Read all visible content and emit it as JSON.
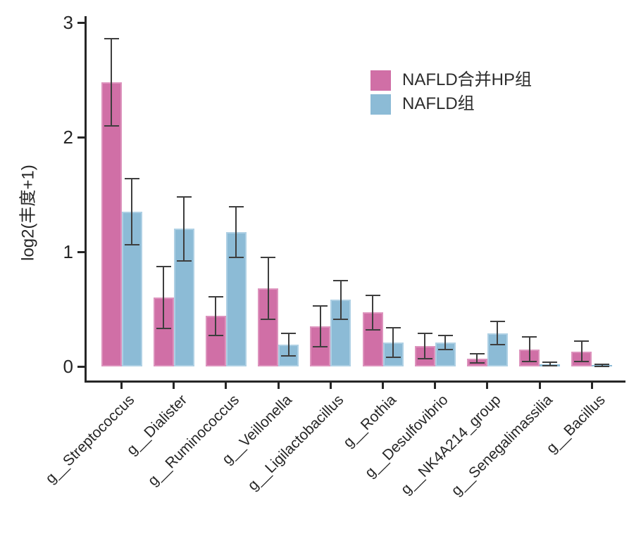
{
  "chart_data": {
    "type": "bar",
    "title": "",
    "ylabel": "log2(丰度+1)",
    "xlabel": "",
    "ylim": [
      0,
      3
    ],
    "yticks": [
      "0",
      "1",
      "2",
      "3"
    ],
    "grid": false,
    "legend_position": "upper-right-inside",
    "categories": [
      "g__Streptococcus",
      "g__Dialister",
      "g__Ruminococcus",
      "g__Veillonella",
      "g__Ligilactobacillus",
      "g__Rothia",
      "g__Desulfovibrio",
      "g__NK4A214_group",
      "g__Senegalimassilia",
      "g__Bacillus"
    ],
    "series": [
      {
        "name": "NAFLD合并HP组",
        "color": "#d06fa6",
        "edge_color": "#dd93bd",
        "values": [
          2.48,
          0.6,
          0.44,
          0.68,
          0.35,
          0.47,
          0.18,
          0.07,
          0.15,
          0.13
        ],
        "errors": [
          0.38,
          0.27,
          0.17,
          0.27,
          0.18,
          0.15,
          0.11,
          0.04,
          0.11,
          0.09
        ]
      },
      {
        "name": "NAFLD组",
        "color": "#8cbbd6",
        "edge_color": "#aed0e4",
        "values": [
          1.35,
          1.2,
          1.17,
          0.19,
          0.58,
          0.21,
          0.21,
          0.29,
          0.02,
          0.01
        ],
        "errors": [
          0.29,
          0.28,
          0.22,
          0.1,
          0.17,
          0.13,
          0.06,
          0.1,
          0.015,
          0.008
        ]
      }
    ],
    "error_bar_color": "#3e3e3e",
    "axis_color": "#262626"
  }
}
